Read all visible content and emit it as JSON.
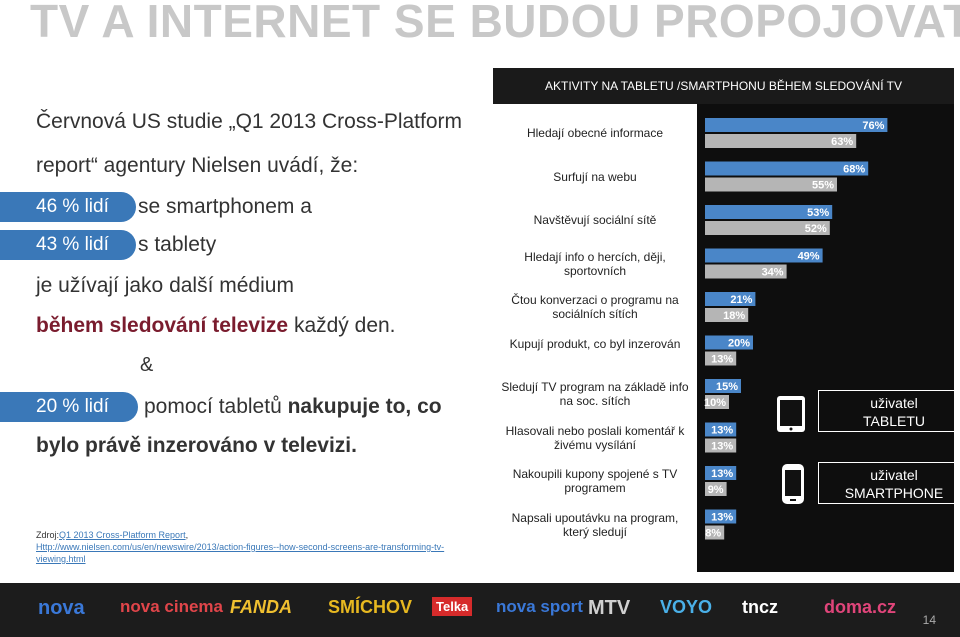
{
  "title": "TV A INTERNET SE BUDOU PROPOJOVAT",
  "left": {
    "line1": "Červnová US studie „Q1 2013 Cross-Platform",
    "line2": "report“ agentury Nielsen uvádí, že:",
    "stat1_pill": "46 % lidí",
    "stat1_text": "se smartphonem a",
    "stat2_pill": "43 % lidí",
    "stat2_text": "s tablety",
    "line5": "je užívají jako další médium",
    "line6_red": "během sledování televize",
    "line6_rest": " každý den.",
    "ampersand": "&",
    "stat3_pill": "20 % lidí",
    "stat3_text_a": "pomocí tabletů ",
    "stat3_text_b": "nakupuje to, co",
    "line8": "bylo právě inzerováno v televizi."
  },
  "source": {
    "prefix": "Zdroj:",
    "link1": "Q1 2013 Cross-Platform Report",
    "sep": ",",
    "link2": "Http://www.nielsen.com/us/en/newswire/2013/action-figures--how-second-screens-are-transforming-tv-viewing.html"
  },
  "chart_data": {
    "type": "bar",
    "title": "AKTIVITY NA TABLETU  /SMARTPHONU BĚHEM SLEDOVÁNÍ TV",
    "categories": [
      "Hledají obecné informace",
      "Surfují na webu",
      "Navštěvují sociální sítě",
      "Hledají info o hercích, ději, sportovních",
      "Čtou konverzaci o programu na sociálních sítích",
      "Kupují produkt, co byl inzerován",
      "Sledují TV program na základě info na soc. sítích",
      "Hlasovali nebo poslali komentář k živému vysílání",
      "Nakoupili kupony spojené s TV programem",
      "Napsali upoutávku na program, který sledují"
    ],
    "series": [
      {
        "name": "uživatel TABLETU",
        "color": "#4a86c8",
        "values": [
          76,
          68,
          53,
          49,
          21,
          20,
          15,
          13,
          13,
          13
        ]
      },
      {
        "name": "uživatel SMARTPHONE",
        "color": "#b5b5b5",
        "values": [
          63,
          55,
          52,
          34,
          18,
          13,
          10,
          13,
          9,
          8
        ]
      }
    ],
    "value_labels": {
      "tablet": [
        "76%",
        "68%",
        "53%",
        "49%",
        "21%",
        "20%",
        "15%",
        "13%",
        "13%",
        "13%"
      ],
      "smartphone": [
        "63%",
        "55%",
        "52%",
        "34%",
        "18%",
        "13%",
        "10%",
        "13%",
        "9%",
        "8%"
      ]
    },
    "ylim": [
      0,
      100
    ]
  },
  "legend": {
    "tablet_line1": "uživatel",
    "tablet_line2": "TABLETU",
    "phone_line1": "uživatel",
    "phone_line2": "SMARTPHONE"
  },
  "logos": [
    "nova",
    "nova cinema",
    "FANDA",
    "SMÍCHOV",
    "Telka",
    "nova sport",
    "MTV",
    "VOYO",
    "tncz",
    "doma.cz"
  ],
  "page_number": "14"
}
